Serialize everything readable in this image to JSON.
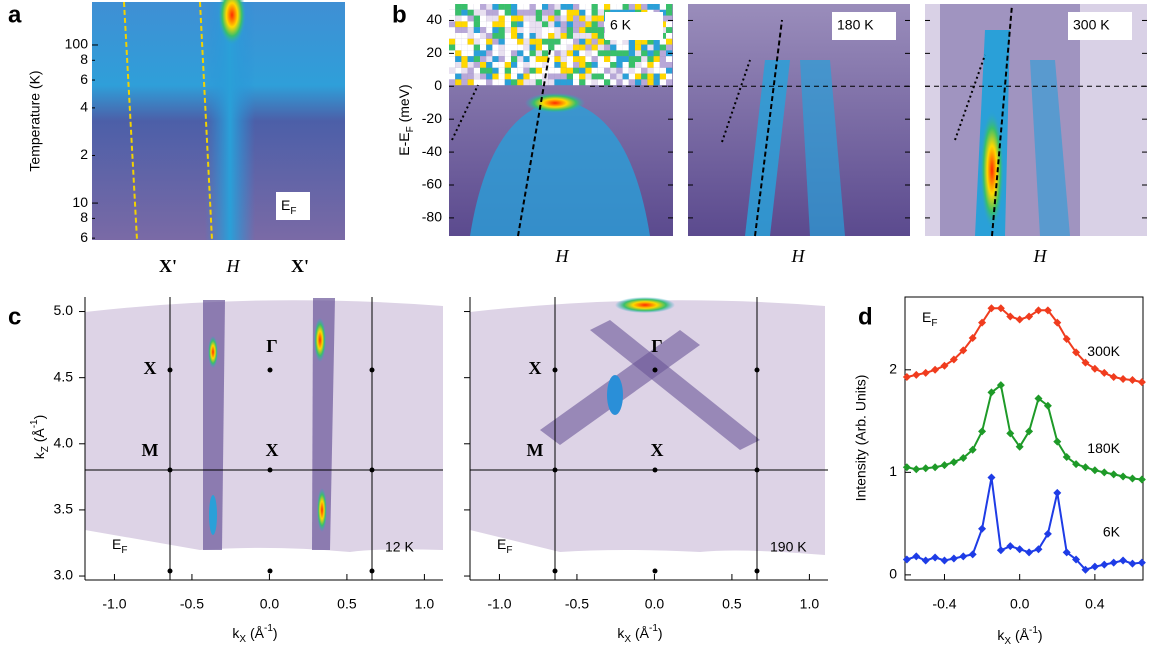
{
  "figure": {
    "a": {
      "letter": "a",
      "ylabel": "Temperature (K)",
      "yscale": "log",
      "ylim": [
        5.84,
        187
      ],
      "yticks": [
        6,
        8,
        10,
        {
          "value": 20,
          "label": "2"
        },
        {
          "value": 40,
          "label": "4"
        },
        {
          "value": 60,
          "label": "6"
        },
        {
          "value": 80,
          "label": "8"
        },
        100
      ],
      "categories": [
        "X'",
        "H",
        "X'"
      ],
      "annotation": [
        "E",
        "F"
      ]
    },
    "b": {
      "letter": "b",
      "ylabel": [
        "E-E",
        "F",
        " (meV)"
      ],
      "ylim": [
        -91,
        50
      ],
      "yticks": [
        -80,
        -60,
        -40,
        -20,
        0,
        20,
        40
      ],
      "panels": [
        {
          "label": "6 K",
          "category": "H"
        },
        {
          "label": "180 K",
          "category": "H"
        },
        {
          "label": "300 K",
          "category": "H"
        }
      ]
    },
    "c": {
      "letter": "c",
      "xlabel": [
        "k",
        "X",
        " (Å",
        "-1",
        ")"
      ],
      "ylabel": [
        "k",
        "Z",
        " (Å",
        "-1",
        ")"
      ],
      "xlim": [
        -1.19,
        1.12
      ],
      "ylim": [
        2.97,
        5.11
      ],
      "xticks": [
        {
          "value": -1,
          "label": "-1.0"
        },
        -0.5,
        {
          "value": 0,
          "label": "0.0"
        },
        0.5,
        {
          "value": 1,
          "label": "1.0"
        }
      ],
      "yticks": [
        {
          "value": 3,
          "label": "3.0"
        },
        3.5,
        {
          "value": 4,
          "label": "4.0"
        },
        4.5,
        {
          "value": 5,
          "label": "5.0"
        }
      ],
      "points": [
        "X",
        "Γ",
        "M",
        "X"
      ],
      "maps": [
        {
          "annotation": [
            "E",
            "F"
          ],
          "label": "12 K"
        },
        {
          "annotation": [
            "E",
            "F"
          ],
          "label": "190 K"
        }
      ]
    },
    "d": {
      "letter": "d",
      "type": "line",
      "ylabel": "Intensity (Arb. Units)",
      "xlabel": [
        "k",
        "X",
        " (Å",
        "-1",
        ")"
      ],
      "annotation": [
        "E",
        "F"
      ],
      "xlim": [
        -0.61,
        0.656
      ],
      "ylim": [
        -0.05,
        2.71
      ],
      "xticks": [
        -0.4,
        {
          "value": 0,
          "label": "0.0"
        },
        0.4
      ],
      "yticks": [
        0,
        1,
        2
      ],
      "x": [
        -0.6,
        -0.55,
        -0.5,
        -0.45,
        -0.4,
        -0.35,
        -0.3,
        -0.25,
        -0.2,
        -0.15,
        -0.1,
        -0.05,
        0,
        0.05,
        0.1,
        0.15,
        0.2,
        0.25,
        0.3,
        0.35,
        0.4,
        0.45,
        0.5,
        0.55,
        0.6,
        0.65
      ],
      "series": [
        {
          "name": "300K",
          "color": "#f03c1e",
          "values": [
            1.93,
            1.95,
            1.97,
            2.0,
            2.04,
            2.1,
            2.19,
            2.31,
            2.46,
            2.6,
            2.6,
            2.52,
            2.49,
            2.52,
            2.58,
            2.58,
            2.46,
            2.3,
            2.17,
            2.07,
            2.01,
            1.97,
            1.93,
            1.91,
            1.9,
            1.88
          ]
        },
        {
          "name": "180K",
          "color": "#1e9a28",
          "values": [
            1.05,
            1.03,
            1.04,
            1.05,
            1.07,
            1.1,
            1.14,
            1.22,
            1.4,
            1.78,
            1.85,
            1.38,
            1.25,
            1.4,
            1.72,
            1.65,
            1.3,
            1.15,
            1.08,
            1.05,
            1.02,
            1.0,
            0.98,
            0.96,
            0.94,
            0.93
          ]
        },
        {
          "name": "6K",
          "color": "#1e3ce6",
          "values": [
            0.15,
            0.18,
            0.14,
            0.17,
            0.14,
            0.16,
            0.18,
            0.2,
            0.45,
            0.95,
            0.24,
            0.28,
            0.25,
            0.22,
            0.25,
            0.4,
            0.8,
            0.22,
            0.15,
            0.05,
            0.08,
            0.1,
            0.12,
            0.14,
            0.11,
            0.12
          ]
        }
      ]
    }
  }
}
